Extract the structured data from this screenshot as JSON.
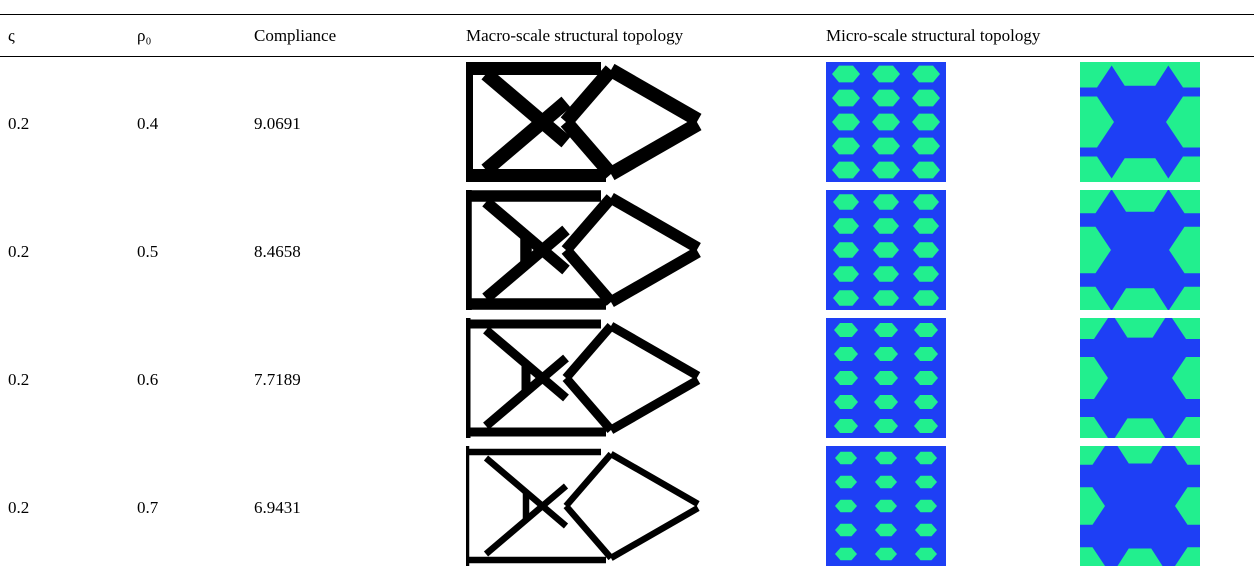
{
  "table": {
    "header": [
      "ς",
      "ρ₀",
      "Compliance",
      "Macro-scale structural topology",
      "Micro-scale structural topology"
    ],
    "rows": [
      [
        "0.2",
        "0.4",
        "9.0691"
      ],
      [
        "0.2",
        "0.5",
        "8.4658"
      ],
      [
        "0.2",
        "0.6",
        "7.7189"
      ],
      [
        "0.2",
        "0.7",
        "6.9431"
      ]
    ]
  }
}
